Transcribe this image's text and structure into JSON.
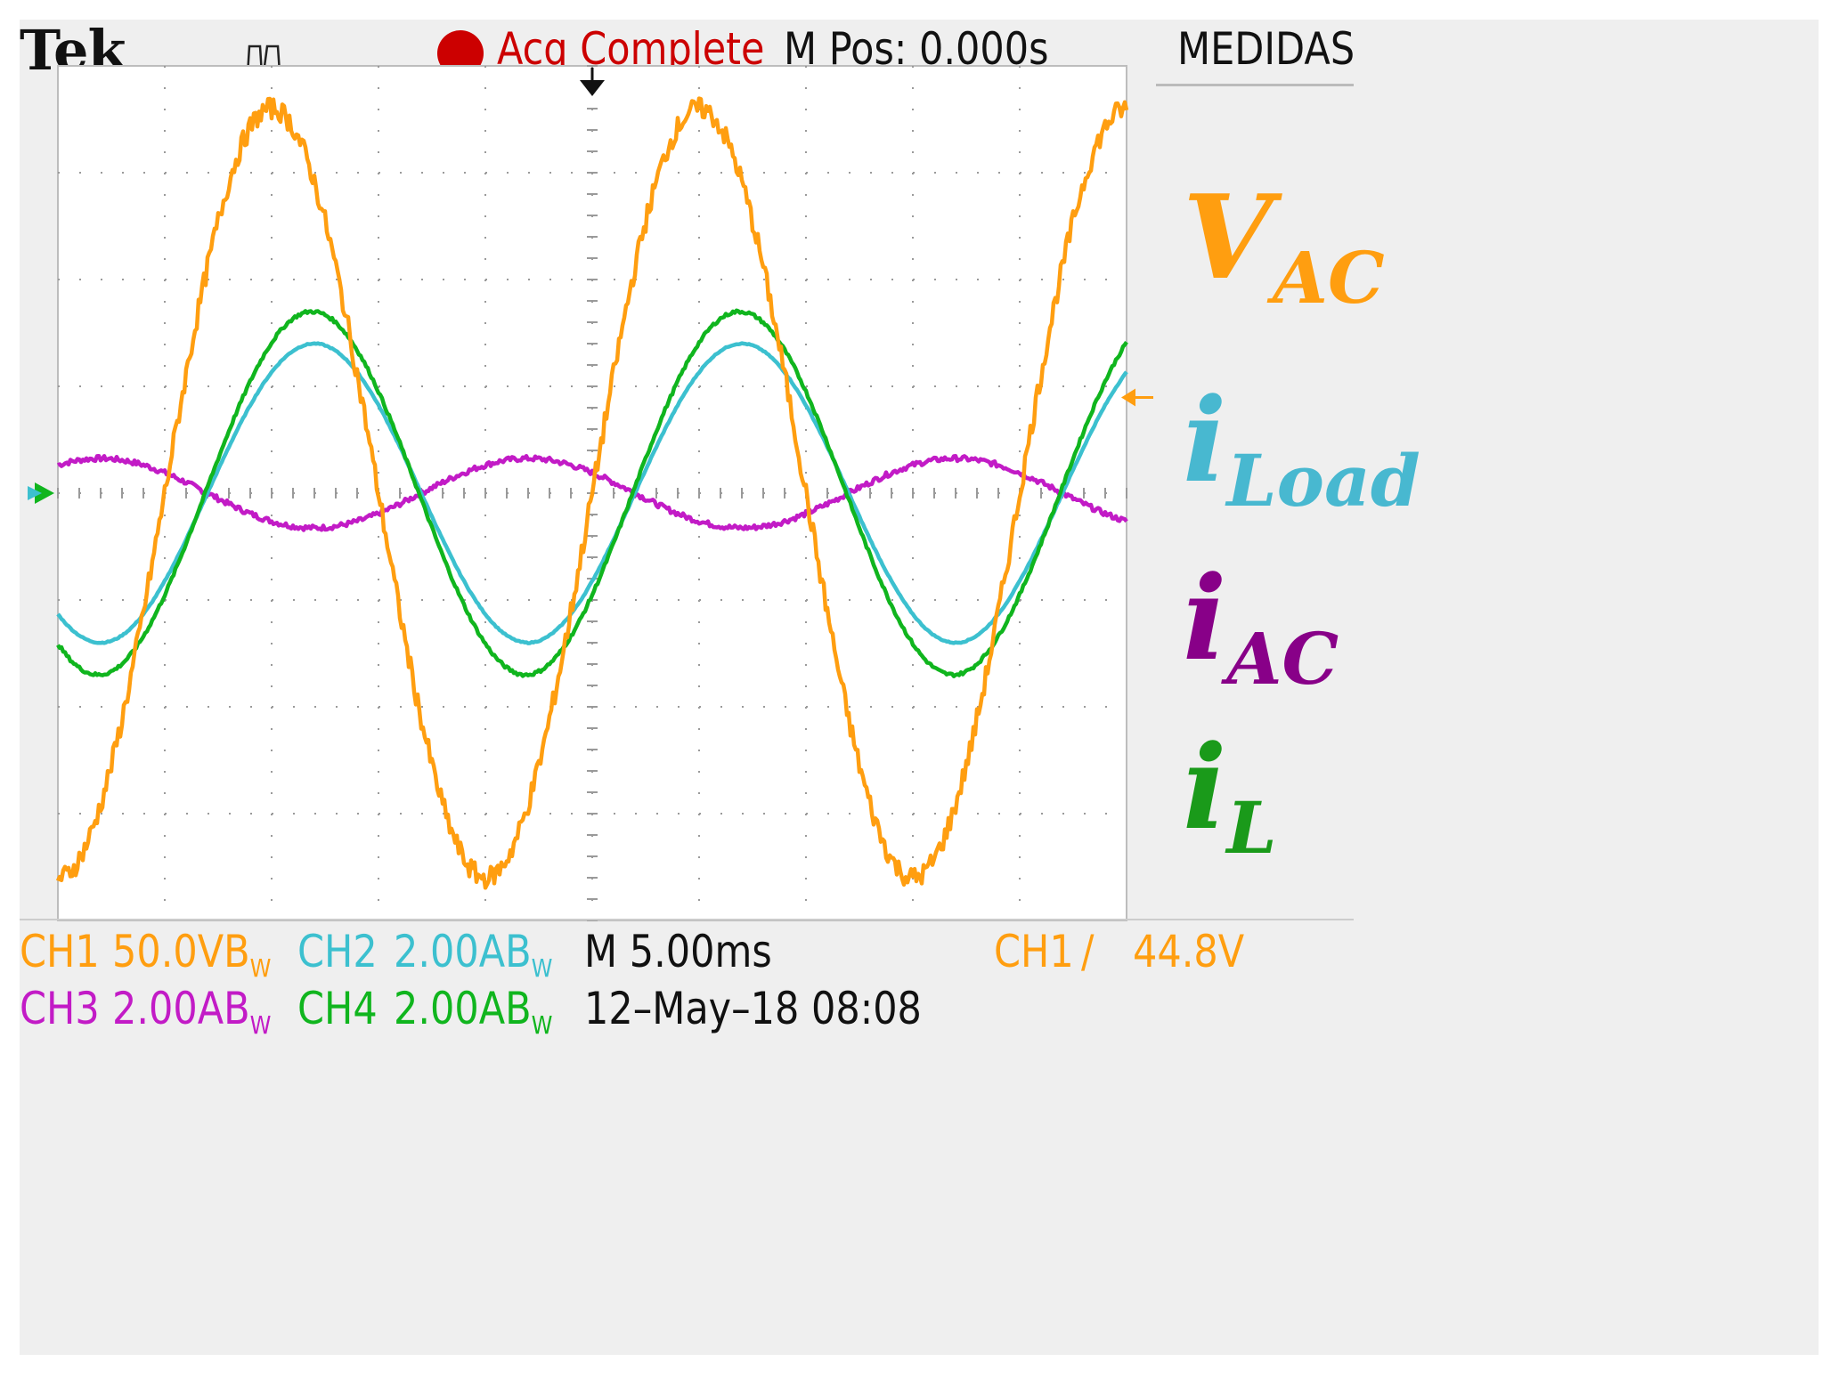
{
  "header": {
    "brand": "Tek",
    "status": "Acq Complete",
    "position": "M Pos: 0.000s",
    "menu": "MEDIDAS"
  },
  "footer": {
    "ch1_name": "CH1",
    "ch1_scale": "50.0V",
    "ch1_bw": "B",
    "ch1_bw_sub": "W",
    "ch2_name": "CH2",
    "ch2_scale": "2.00A",
    "ch2_bw": "B",
    "ch2_bw_sub": "W",
    "ch3_name": "CH3",
    "ch3_scale": "2.00A",
    "ch3_bw": "B",
    "ch3_bw_sub": "W",
    "ch4_name": "CH4",
    "ch4_scale": "2.00A",
    "ch4_bw": "B",
    "ch4_bw_sub": "W",
    "timebase": "M 5.00ms",
    "date": "12–May–18 08:08",
    "trigger_source": "CH1",
    "trigger_slope": "∕",
    "trigger_level": "44.8V"
  },
  "legend": {
    "vac_main": "V",
    "vac_sub": "AC",
    "iload_main": "i",
    "iload_sub": "Load",
    "iac_main": "i",
    "iac_sub": "AC",
    "il_main": "i",
    "il_sub": "L"
  },
  "colors": {
    "ch1": "#ff9e10",
    "ch2": "#3cc0cf",
    "ch3": "#c21bc6",
    "ch4": "#10b51e",
    "status_red": "#cc0000",
    "screen_bg": "#ffffff",
    "bezel_bg": "#efefef",
    "grid": "#9a9a9a",
    "legend_vac": "#ff9e10",
    "legend_iload": "#48b8d0",
    "legend_iac": "#880088",
    "legend_il": "#1a9a1a"
  },
  "chart_data": {
    "type": "line",
    "x_unit": "ms",
    "x_divisions": 10,
    "y_divisions": 8,
    "xlim": [
      -25,
      25
    ],
    "time_per_div_ms": 5.0,
    "frequency_hz": 50,
    "grid": true,
    "series": [
      {
        "name": "CH1",
        "unit": "V",
        "volts_per_div": 50.0,
        "amplitude": 180,
        "phase_deg": 0,
        "noise": 0.2
      },
      {
        "name": "CH2",
        "unit": "A",
        "amps_per_div": 2.0,
        "amplitude": 2.8,
        "phase_deg": -36,
        "noise": 0.01
      },
      {
        "name": "CH3",
        "unit": "A",
        "amps_per_div": 2.0,
        "amplitude": 0.65,
        "phase_deg": 144,
        "noise": 0.05
      },
      {
        "name": "CH4",
        "unit": "A",
        "amps_per_div": 2.0,
        "amplitude": 3.4,
        "phase_deg": -34,
        "noise": 0.03
      }
    ],
    "trigger": {
      "source": "CH1",
      "level_v": 44.8,
      "slope": "rising"
    }
  }
}
